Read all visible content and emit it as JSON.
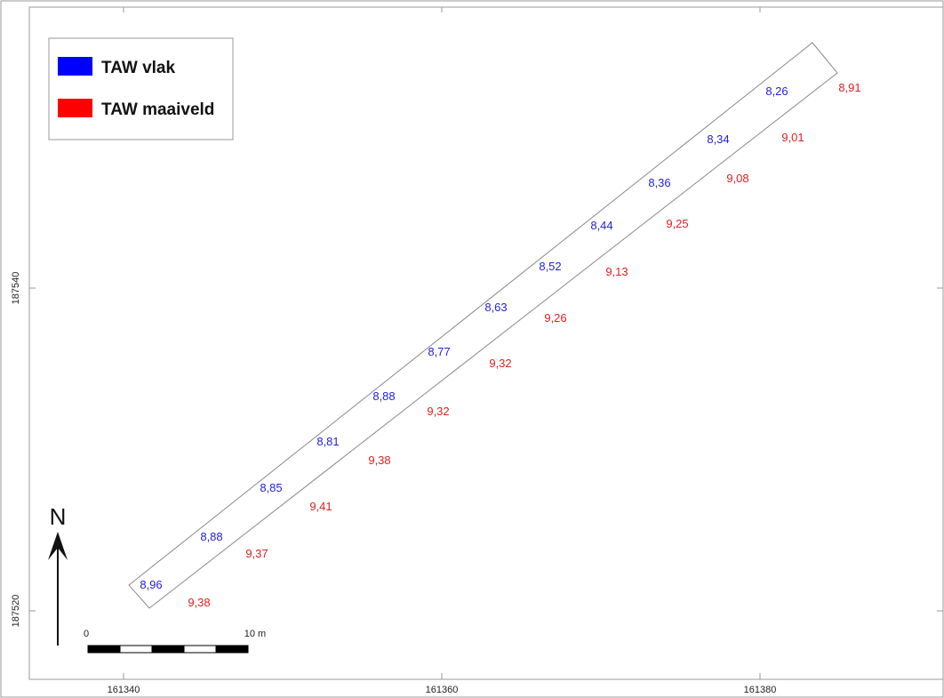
{
  "legend": {
    "items": [
      {
        "label": "TAW vlak",
        "color": "#0000ff"
      },
      {
        "label": "TAW maaiveld",
        "color": "#ff0000"
      }
    ]
  },
  "colors": {
    "vlak": "#2323d6",
    "maaiveld": "#e02020"
  },
  "north_label": "N",
  "scalebar": {
    "start_label": "0",
    "end_label": "10 m"
  },
  "coordinates": {
    "x_ticks": [
      "161340",
      "161360",
      "161380"
    ],
    "y_ticks": [
      "187540",
      "187520"
    ]
  },
  "labels_vlak": [
    "8,96",
    "8,88",
    "8,85",
    "8,81",
    "8,88",
    "8,77",
    "8,63",
    "8,52",
    "8,44",
    "8,36",
    "8,34",
    "8,26"
  ],
  "labels_maaiveld": [
    "9,38",
    "9,37",
    "9,41",
    "9,38",
    "9,32",
    "9,32",
    "9,26",
    "9,13",
    "9,25",
    "9,08",
    "9,01",
    "8,91"
  ]
}
